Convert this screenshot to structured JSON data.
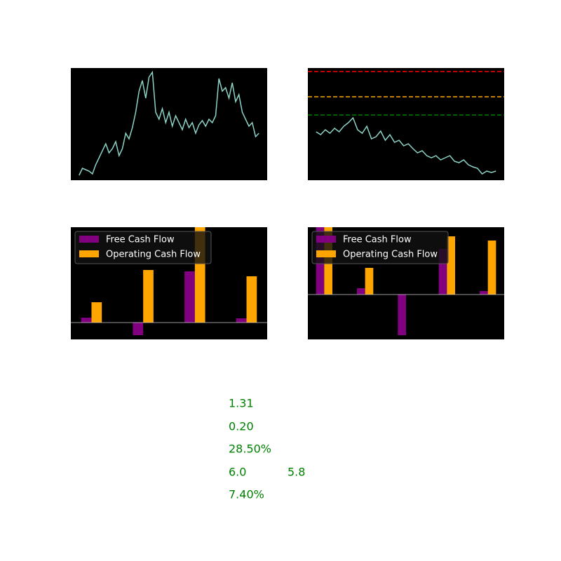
{
  "chart_data": [
    {
      "type": "line",
      "color": "#8dd3c7",
      "ylim": [
        0,
        100
      ],
      "values": [
        4.4,
        10.6,
        9.4,
        8.1,
        5.6,
        13.8,
        20,
        26.3,
        32.5,
        24.4,
        28.1,
        34.4,
        21.9,
        28.1,
        41.9,
        36.9,
        46.9,
        60.6,
        79.4,
        88.8,
        73.1,
        91.9,
        96.3,
        60.6,
        54.4,
        63.8,
        51.3,
        60.6,
        48.1,
        57.5,
        51.3,
        45,
        54.4,
        46.9,
        51.3,
        41.9,
        49.4,
        53.1,
        48.1,
        54.4,
        51.3,
        57.5,
        90.6,
        79.4,
        82.5,
        73.1,
        86.9,
        70,
        76.3,
        60.6,
        54.4,
        48.1,
        51.3,
        38.8,
        41.9
      ]
    },
    {
      "type": "line",
      "color": "#8dd3c7",
      "ylim": [
        0,
        100
      ],
      "hlines": [
        {
          "value": 96.9,
          "color": "red"
        },
        {
          "value": 74.4,
          "color": "#ffa500"
        },
        {
          "value": 58.1,
          "color": "green"
        }
      ],
      "values": [
        43.1,
        40.6,
        45,
        41.9,
        46.3,
        43.1,
        48.1,
        51.3,
        55.6,
        45,
        41.9,
        48.1,
        36.9,
        38.8,
        43.8,
        35.6,
        40.6,
        33.8,
        35.6,
        30.6,
        32.5,
        28.1,
        24.4,
        26.3,
        21.9,
        20,
        21.9,
        18.1,
        20,
        21.9,
        16.9,
        15.6,
        18.1,
        13.8,
        11.9,
        10.6,
        5.6,
        8.1,
        6.9,
        8.1
      ]
    },
    {
      "type": "bar",
      "ylim": [
        -24,
        136
      ],
      "legend": "upper left",
      "categories": [
        null,
        null,
        null,
        null
      ],
      "series": [
        {
          "name": "Free Cash Flow",
          "color": "purple",
          "values": [
            7,
            -18,
            73,
            6
          ]
        },
        {
          "name": "Operating Cash Flow",
          "color": "orange",
          "values": [
            29,
            75,
            136,
            66
          ]
        }
      ]
    },
    {
      "type": "bar",
      "ylim": [
        -64,
        96
      ],
      "legend": "upper left",
      "categories": [
        null,
        null,
        null,
        null,
        null
      ],
      "series": [
        {
          "name": "Free Cash Flow",
          "color": "purple",
          "values": [
            96,
            9,
            -58,
            65,
            5
          ]
        },
        {
          "name": "Operating Cash Flow",
          "color": "orange",
          "values": [
            96,
            38,
            0,
            83,
            77
          ]
        }
      ]
    }
  ],
  "metrics": [
    [
      "1.31"
    ],
    [
      "0.20"
    ],
    [
      "28.50%"
    ],
    [
      "6.0",
      "5.8"
    ],
    [
      "7.40%"
    ]
  ]
}
